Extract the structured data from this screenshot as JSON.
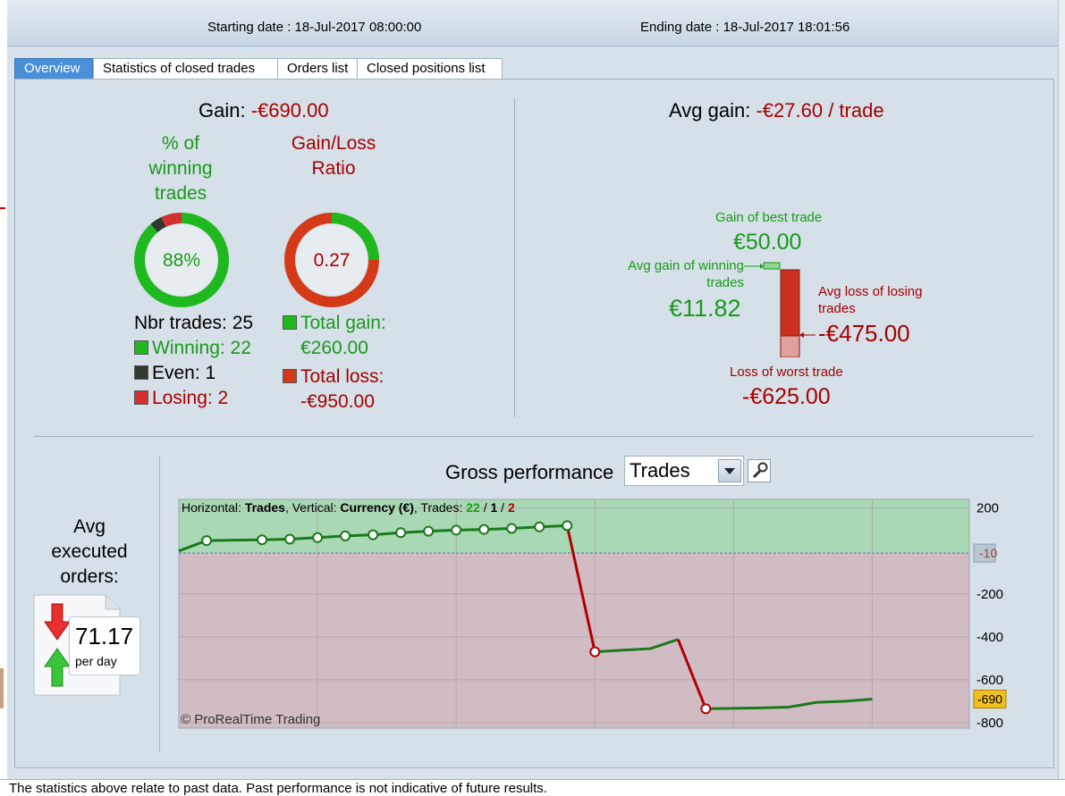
{
  "header": {
    "starting_label": "Starting date : 18-Jul-2017 08:00:00",
    "ending_label": "Ending date : 18-Jul-2017 18:01:56"
  },
  "tabs": [
    {
      "label": "Overview",
      "active": true
    },
    {
      "label": "Statistics of closed trades",
      "active": false
    },
    {
      "label": "Orders list",
      "active": false
    },
    {
      "label": "Closed positions list",
      "active": false
    }
  ],
  "gain": {
    "label": "Gain:",
    "value": "-€690.00"
  },
  "winning_pct": {
    "title_lines": [
      "% of",
      "winning",
      "trades"
    ],
    "value": "88%",
    "fraction": 0.88
  },
  "gain_loss_ratio": {
    "title_lines": [
      "Gain/Loss",
      "Ratio"
    ],
    "value": "0.27",
    "fraction": 0.27
  },
  "trades_summary": {
    "nbr_label": "Nbr trades: 25",
    "winning": "Winning: 22",
    "even": "Even: 1",
    "losing": "Losing: 2"
  },
  "totals": {
    "total_gain_label": "Total gain:",
    "total_gain_value": "€260.00",
    "total_loss_label": "Total loss:",
    "total_loss_value": "-€950.00"
  },
  "avg_gain": {
    "label": "Avg gain:",
    "value": "-€27.60 / trade"
  },
  "best_worst": {
    "best_label": "Gain of best trade",
    "best_value": "€50.00",
    "avg_win_label_1": "Avg gain of winning",
    "avg_win_label_2": "trades",
    "avg_win_value": "€11.82",
    "avg_loss_label_1": "Avg loss of losing",
    "avg_loss_label_2": "trades",
    "avg_loss_value": "-€475.00",
    "worst_label": "Loss of worst trade",
    "worst_value": "-€625.00"
  },
  "avg_orders": {
    "title_lines": [
      "Avg",
      "executed",
      "orders:"
    ],
    "value": "71.17",
    "unit": "per day"
  },
  "performance": {
    "title": "Gross performance",
    "dropdown_value": "Trades",
    "info_prefix": "Horizontal: ",
    "info_h": "Trades",
    "info_mid": ", Vertical: ",
    "info_v": "Currency (€)",
    "info_trades": ", Trades: ",
    "info_win": "22",
    "info_sep1": " / ",
    "info_even": "1",
    "info_sep2": " / ",
    "info_lose": "2",
    "copyright": "© ProRealTime Trading",
    "marker_10": "-10",
    "marker_690": "-690"
  },
  "chart_data": {
    "type": "line",
    "xlabel": "Trades",
    "ylabel": "Currency (€)",
    "xlim": [
      0,
      28.5
    ],
    "ylim": [
      -825,
      240
    ],
    "x_ticks": [
      5,
      10,
      15,
      20,
      25
    ],
    "y_ticks": [
      200,
      -200,
      -400,
      -600,
      -800
    ],
    "zero_line": -10,
    "series": [
      {
        "points": [
          [
            0,
            0
          ],
          [
            1,
            48
          ],
          [
            2,
            50
          ],
          [
            3,
            52
          ],
          [
            4,
            55
          ],
          [
            5,
            62
          ],
          [
            6,
            70
          ],
          [
            7,
            75
          ],
          [
            8,
            85
          ],
          [
            9,
            92
          ],
          [
            10,
            97
          ],
          [
            11,
            100
          ],
          [
            12,
            105
          ],
          [
            13,
            112
          ],
          [
            14,
            118
          ],
          [
            15,
            -470
          ],
          [
            16,
            -462
          ],
          [
            17,
            -455
          ],
          [
            18,
            -412
          ],
          [
            19,
            -735
          ],
          [
            20,
            -733
          ],
          [
            21,
            -731
          ],
          [
            22,
            -727
          ],
          [
            23,
            -705
          ],
          [
            24,
            -700
          ],
          [
            25,
            -690
          ]
        ],
        "markers": [
          1,
          3,
          4,
          5,
          6,
          7,
          8,
          9,
          10,
          11,
          12,
          13,
          14,
          15,
          19
        ]
      }
    ],
    "final_value": -690
  },
  "footer": "The statistics above relate to past data. Past performance is not indicative of future results."
}
